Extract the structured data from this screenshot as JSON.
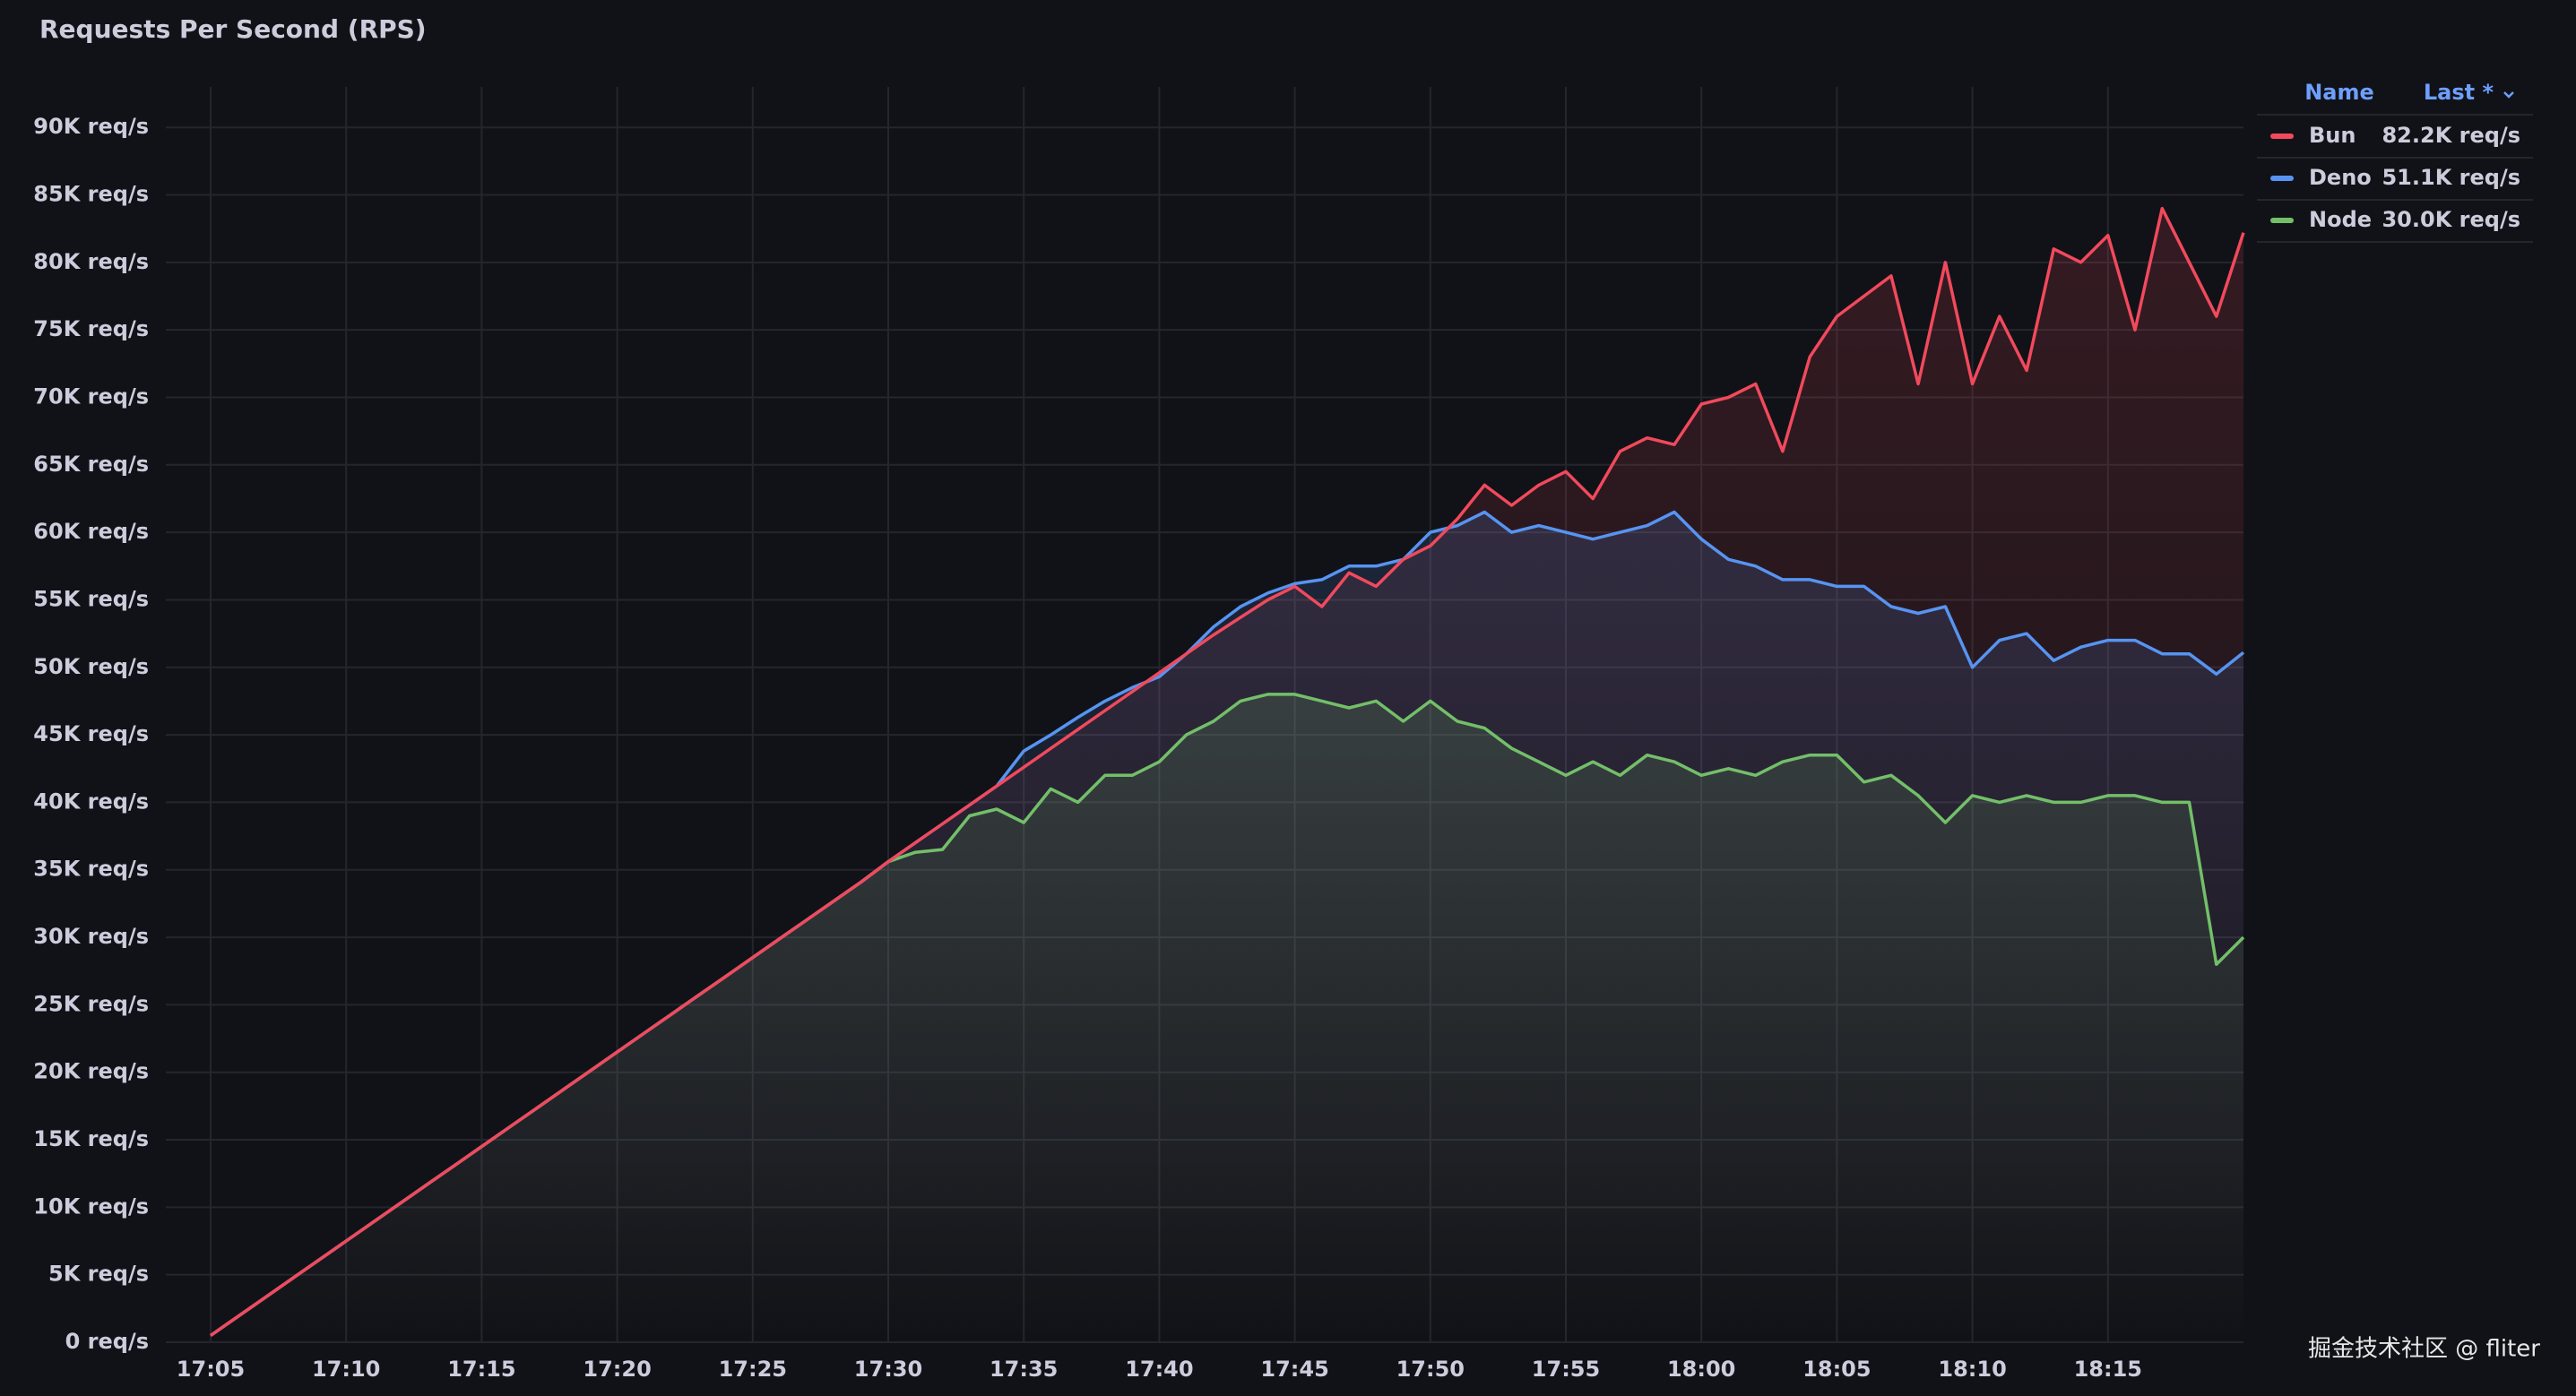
{
  "chart_data": {
    "type": "line",
    "title": "Requests Per Second (RPS)",
    "x": [
      "17:05",
      "17:06",
      "17:07",
      "17:08",
      "17:09",
      "17:10",
      "17:11",
      "17:12",
      "17:13",
      "17:14",
      "17:15",
      "17:16",
      "17:17",
      "17:18",
      "17:19",
      "17:20",
      "17:21",
      "17:22",
      "17:23",
      "17:24",
      "17:25",
      "17:26",
      "17:27",
      "17:28",
      "17:29",
      "17:30",
      "17:31",
      "17:32",
      "17:33",
      "17:34",
      "17:35",
      "17:36",
      "17:37",
      "17:38",
      "17:39",
      "17:40",
      "17:41",
      "17:42",
      "17:43",
      "17:44",
      "17:45",
      "17:46",
      "17:47",
      "17:48",
      "17:49",
      "17:50",
      "17:51",
      "17:52",
      "17:53",
      "17:54",
      "17:55",
      "17:56",
      "17:57",
      "17:58",
      "17:59",
      "18:00",
      "18:01",
      "18:02",
      "18:03",
      "18:04",
      "18:05",
      "18:06",
      "18:07",
      "18:08",
      "18:09",
      "18:10",
      "18:11",
      "18:12",
      "18:13",
      "18:14",
      "18:15",
      "18:16",
      "18:17",
      "18:18",
      "18:19",
      "18:20"
    ],
    "series": [
      {
        "name": "Bun",
        "color": "#f2495c",
        "last_label": "82.2K req/s",
        "values": [
          500,
          1900,
          3300,
          4700,
          6100,
          7500,
          8900,
          10300,
          11700,
          13100,
          14500,
          15900,
          17300,
          18700,
          20100,
          21500,
          22900,
          24300,
          25700,
          27100,
          28500,
          29900,
          31300,
          32700,
          34100,
          35600,
          37000,
          38400,
          39800,
          41200,
          42600,
          44000,
          45400,
          46800,
          48200,
          49600,
          51000,
          52400,
          53700,
          55000,
          56000,
          54500,
          57000,
          56000,
          58000,
          59000,
          61000,
          63500,
          62000,
          63500,
          64500,
          62500,
          66000,
          67000,
          66500,
          69500,
          70000,
          71000,
          66000,
          73000,
          76000,
          77500,
          79000,
          71000,
          80000,
          71000,
          76000,
          72000,
          81000,
          80000,
          82000,
          75000,
          84000,
          80000,
          76000,
          82200
        ]
      },
      {
        "name": "Deno",
        "color": "#5794f2",
        "last_label": "51.1K req/s",
        "values": [
          500,
          1900,
          3300,
          4700,
          6100,
          7500,
          8900,
          10300,
          11700,
          13100,
          14500,
          15900,
          17300,
          18700,
          20100,
          21500,
          22900,
          24300,
          25700,
          27100,
          28500,
          29900,
          31300,
          32700,
          34100,
          35600,
          37000,
          38400,
          39800,
          41200,
          43800,
          45000,
          46300,
          47500,
          48500,
          49300,
          51000,
          53000,
          54500,
          55500,
          56200,
          56500,
          57500,
          57500,
          58000,
          60000,
          60500,
          61500,
          60000,
          60500,
          60000,
          59500,
          60000,
          60500,
          61500,
          59500,
          58000,
          57500,
          56500,
          56500,
          56000,
          56000,
          54500,
          54000,
          54500,
          50000,
          52000,
          52500,
          50500,
          51500,
          52000,
          52000,
          51000,
          51000,
          49500,
          51100
        ]
      },
      {
        "name": "Node",
        "color": "#73bf69",
        "last_label": "30.0K req/s",
        "values": [
          500,
          1900,
          3300,
          4700,
          6100,
          7500,
          8900,
          10300,
          11700,
          13100,
          14500,
          15900,
          17300,
          18700,
          20100,
          21500,
          22900,
          24300,
          25700,
          27100,
          28500,
          29900,
          31300,
          32700,
          34100,
          35600,
          36300,
          36500,
          39000,
          39500,
          38500,
          41000,
          40000,
          42000,
          42000,
          43000,
          45000,
          46000,
          47500,
          48000,
          48000,
          47500,
          47000,
          47500,
          46000,
          47500,
          46000,
          45500,
          44000,
          43000,
          42000,
          43000,
          42000,
          43500,
          43000,
          42000,
          42500,
          42000,
          43000,
          43500,
          43500,
          41500,
          42000,
          40500,
          38500,
          40500,
          40000,
          40500,
          40000,
          40000,
          40500,
          40500,
          40000,
          40000,
          28000,
          30000
        ]
      }
    ],
    "xlim": [
      "17:05",
      "18:20"
    ],
    "xticks": [
      "17:05",
      "17:10",
      "17:15",
      "17:20",
      "17:25",
      "17:30",
      "17:35",
      "17:40",
      "17:45",
      "17:50",
      "17:55",
      "18:00",
      "18:05",
      "18:10",
      "18:15"
    ],
    "ylim": [
      0,
      93000
    ],
    "yticks": [
      {
        "value": 0,
        "label": "0 req/s"
      },
      {
        "value": 5000,
        "label": "5K req/s"
      },
      {
        "value": 10000,
        "label": "10K req/s"
      },
      {
        "value": 15000,
        "label": "15K req/s"
      },
      {
        "value": 20000,
        "label": "20K req/s"
      },
      {
        "value": 25000,
        "label": "25K req/s"
      },
      {
        "value": 30000,
        "label": "30K req/s"
      },
      {
        "value": 35000,
        "label": "35K req/s"
      },
      {
        "value": 40000,
        "label": "40K req/s"
      },
      {
        "value": 45000,
        "label": "45K req/s"
      },
      {
        "value": 50000,
        "label": "50K req/s"
      },
      {
        "value": 55000,
        "label": "55K req/s"
      },
      {
        "value": 60000,
        "label": "60K req/s"
      },
      {
        "value": 65000,
        "label": "65K req/s"
      },
      {
        "value": 70000,
        "label": "70K req/s"
      },
      {
        "value": 75000,
        "label": "75K req/s"
      },
      {
        "value": 80000,
        "label": "80K req/s"
      },
      {
        "value": 85000,
        "label": "85K req/s"
      },
      {
        "value": 90000,
        "label": "90K req/s"
      }
    ],
    "grid": true,
    "legend": {
      "name_header": "Name",
      "value_header": "Last *"
    },
    "watermark": "掘金技术社区 @ fliter"
  }
}
